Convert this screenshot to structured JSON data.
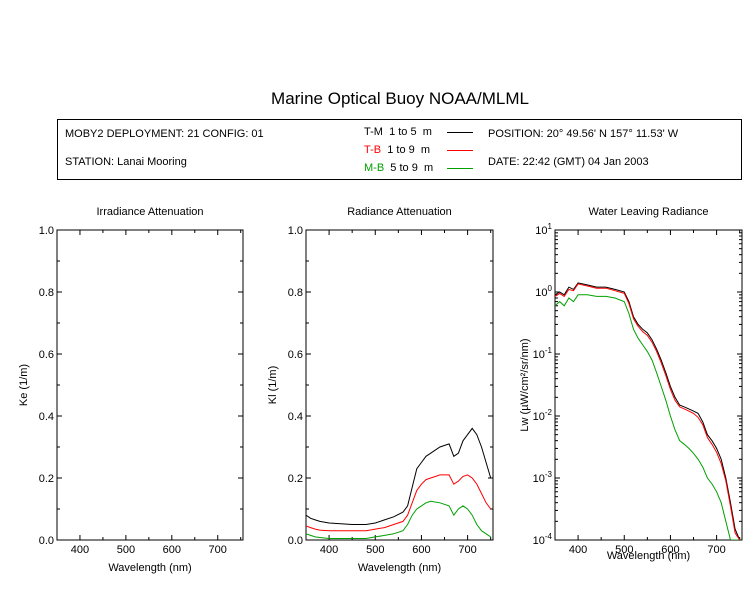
{
  "header": {
    "title": "Marine Optical Buoy NOAA/MLML",
    "deployment": "MOBY2 DEPLOYMENT: 21 CONFIG: 01",
    "station": "STATION: Lanai Mooring",
    "position": "POSITION: 20° 49.56' N   157° 11.53' W",
    "date": "DATE: 22:42 (GMT) 04 Jan 2003"
  },
  "legend": [
    {
      "code": "T-M",
      "range": "1 to 5",
      "unit": "m",
      "color": "#000000"
    },
    {
      "code": "T-B",
      "range": "1 to 9",
      "unit": "m",
      "color": "#ff0000"
    },
    {
      "code": "M-B",
      "range": "5 to 9",
      "unit": "m",
      "color": "#00a000"
    }
  ],
  "colors": {
    "T-M": "#000000",
    "T-B": "#ff0000",
    "M-B": "#00a000"
  },
  "chart_data": [
    {
      "type": "line",
      "title": "Irradiance Attenuation",
      "xlabel": "Wavelength (nm)",
      "ylabel": "Ke  (1/m)",
      "xlim": [
        350,
        755
      ],
      "ylim": [
        0,
        1
      ],
      "xticks": [
        400,
        500,
        600,
        700
      ],
      "yticks": [
        0.0,
        0.2,
        0.4,
        0.6,
        0.8,
        1.0
      ],
      "ytick_labels": [
        "0.0",
        "0.2",
        "0.4",
        "0.6",
        "0.8",
        "1.0"
      ],
      "series": []
    },
    {
      "type": "line",
      "title": "Radiance Attenuation",
      "xlabel": "Wavelength (nm)",
      "ylabel": "Kl  (1/m)",
      "xlim": [
        350,
        755
      ],
      "ylim": [
        0,
        1
      ],
      "xticks": [
        400,
        500,
        600,
        700
      ],
      "yticks": [
        0.0,
        0.2,
        0.4,
        0.6,
        0.8,
        1.0
      ],
      "ytick_labels": [
        "0.0",
        "0.2",
        "0.4",
        "0.6",
        "0.8",
        "1.0"
      ],
      "series": [
        {
          "name": "T-M",
          "color": "#000000",
          "x": [
            350,
            360,
            370,
            380,
            400,
            450,
            480,
            500,
            520,
            540,
            560,
            570,
            580,
            590,
            600,
            610,
            620,
            640,
            660,
            670,
            680,
            690,
            700,
            710,
            720,
            730,
            740,
            750
          ],
          "y": [
            0.08,
            0.07,
            0.065,
            0.06,
            0.055,
            0.05,
            0.05,
            0.055,
            0.065,
            0.075,
            0.09,
            0.11,
            0.17,
            0.23,
            0.25,
            0.27,
            0.28,
            0.3,
            0.31,
            0.27,
            0.28,
            0.32,
            0.34,
            0.36,
            0.34,
            0.3,
            0.25,
            0.2
          ]
        },
        {
          "name": "T-B",
          "color": "#ff0000",
          "x": [
            350,
            360,
            370,
            380,
            400,
            450,
            480,
            500,
            520,
            540,
            560,
            570,
            580,
            590,
            600,
            610,
            620,
            640,
            660,
            670,
            680,
            690,
            700,
            710,
            720,
            730,
            740,
            750
          ],
          "y": [
            0.045,
            0.04,
            0.035,
            0.032,
            0.03,
            0.03,
            0.03,
            0.035,
            0.04,
            0.05,
            0.06,
            0.08,
            0.12,
            0.16,
            0.18,
            0.195,
            0.2,
            0.21,
            0.21,
            0.18,
            0.19,
            0.205,
            0.21,
            0.2,
            0.18,
            0.15,
            0.12,
            0.1
          ]
        },
        {
          "name": "M-B",
          "color": "#00a000",
          "x": [
            350,
            360,
            370,
            380,
            400,
            450,
            480,
            500,
            520,
            540,
            560,
            570,
            580,
            590,
            600,
            610,
            620,
            640,
            660,
            670,
            680,
            690,
            700,
            710,
            720,
            730,
            740,
            750
          ],
          "y": [
            0.02,
            0.015,
            0.01,
            0.008,
            0.005,
            0.005,
            0.005,
            0.01,
            0.015,
            0.02,
            0.03,
            0.05,
            0.08,
            0.1,
            0.11,
            0.12,
            0.125,
            0.12,
            0.11,
            0.08,
            0.1,
            0.11,
            0.1,
            0.08,
            0.05,
            0.03,
            0.02,
            0.01
          ]
        }
      ]
    },
    {
      "type": "line",
      "title": "Water Leaving Radiance",
      "xlabel": "Wavelength (nm)",
      "ylabel": "Lw  (µW/cm²/sr/nm)",
      "xlim": [
        350,
        755
      ],
      "ylim": [
        0.0001,
        10
      ],
      "yscale": "log",
      "xticks": [
        400,
        500,
        600,
        700
      ],
      "yticks_exp": [
        1,
        0,
        -1,
        -2,
        -3,
        -4
      ],
      "series": [
        {
          "name": "T-M",
          "color": "#000000",
          "x": [
            350,
            360,
            370,
            380,
            390,
            400,
            420,
            440,
            460,
            480,
            500,
            510,
            520,
            530,
            540,
            550,
            560,
            570,
            580,
            590,
            600,
            610,
            620,
            630,
            640,
            650,
            660,
            670,
            680,
            690,
            700,
            710,
            720,
            730,
            740,
            750
          ],
          "y": [
            0.9,
            1.0,
            0.9,
            1.2,
            1.1,
            1.4,
            1.3,
            1.2,
            1.2,
            1.1,
            1.0,
            0.7,
            0.4,
            0.3,
            0.25,
            0.22,
            0.17,
            0.12,
            0.08,
            0.05,
            0.03,
            0.02,
            0.015,
            0.014,
            0.013,
            0.012,
            0.011,
            0.008,
            0.005,
            0.004,
            0.003,
            0.002,
            0.001,
            0.0004,
            0.00015,
            0.0001
          ]
        },
        {
          "name": "T-B",
          "color": "#ff0000",
          "x": [
            350,
            360,
            370,
            380,
            390,
            400,
            420,
            440,
            460,
            480,
            500,
            510,
            520,
            530,
            540,
            550,
            560,
            570,
            580,
            590,
            600,
            610,
            620,
            630,
            640,
            650,
            660,
            670,
            680,
            690,
            700,
            710,
            720,
            730,
            740,
            750
          ],
          "y": [
            0.85,
            0.95,
            0.85,
            1.1,
            1.05,
            1.35,
            1.25,
            1.15,
            1.15,
            1.05,
            0.95,
            0.65,
            0.37,
            0.28,
            0.23,
            0.2,
            0.155,
            0.11,
            0.072,
            0.045,
            0.027,
            0.018,
            0.014,
            0.013,
            0.012,
            0.011,
            0.0095,
            0.0072,
            0.0045,
            0.0035,
            0.0026,
            0.0017,
            0.0009,
            0.00035,
            0.00013,
            0.0001
          ]
        },
        {
          "name": "M-B",
          "color": "#00a000",
          "x": [
            350,
            360,
            370,
            380,
            390,
            400,
            420,
            440,
            460,
            480,
            500,
            510,
            520,
            530,
            540,
            550,
            560,
            570,
            580,
            590,
            600,
            610,
            620,
            630,
            640,
            650,
            660,
            670,
            680,
            690,
            700,
            710,
            720,
            730,
            740,
            750
          ],
          "y": [
            0.6,
            0.7,
            0.6,
            0.8,
            0.7,
            0.9,
            0.9,
            0.85,
            0.85,
            0.8,
            0.7,
            0.45,
            0.25,
            0.18,
            0.14,
            0.11,
            0.08,
            0.05,
            0.03,
            0.018,
            0.01,
            0.006,
            0.004,
            0.0035,
            0.003,
            0.0025,
            0.002,
            0.0015,
            0.001,
            0.0008,
            0.0006,
            0.0004,
            0.0002,
            0.0001,
            0.0001,
            0.0001
          ]
        }
      ]
    }
  ]
}
